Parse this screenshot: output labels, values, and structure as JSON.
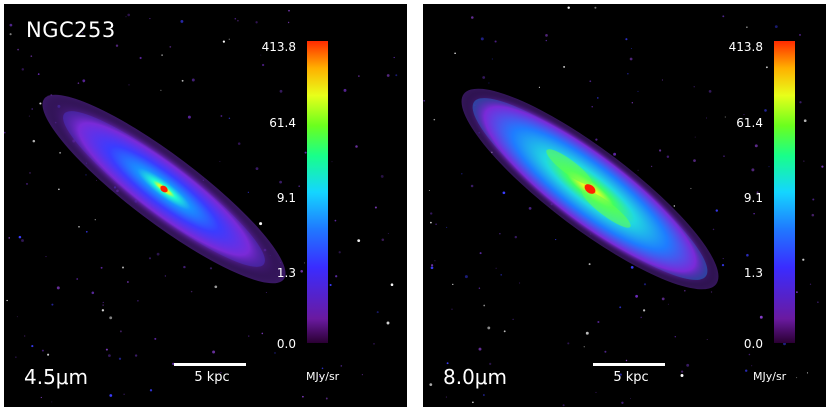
{
  "galaxy_name": "NGC253",
  "panels": [
    {
      "id": "left",
      "band": "4.5μm",
      "scale_bar": "5 kpc",
      "colorbar": {
        "ticks": [
          "413.8",
          "61.4",
          "9.1",
          "1.3",
          "0.0"
        ],
        "unit": "MJy/sr",
        "colors": [
          "#ff2a00",
          "#e8ff1a",
          "#18ff8a",
          "#14d6ff",
          "#1f7bff",
          "#6a1aa0",
          "#2a0033"
        ]
      }
    },
    {
      "id": "right",
      "band": "8.0μm",
      "scale_bar": "5 kpc",
      "colorbar": {
        "ticks": [
          "413.8",
          "61.4",
          "9.1",
          "1.3",
          "0.0"
        ],
        "unit": "MJy/sr",
        "colors": [
          "#ff2a00",
          "#e8ff1a",
          "#18ff8a",
          "#14d6ff",
          "#1f7bff",
          "#6a1aa0",
          "#2a0033"
        ]
      }
    }
  ]
}
